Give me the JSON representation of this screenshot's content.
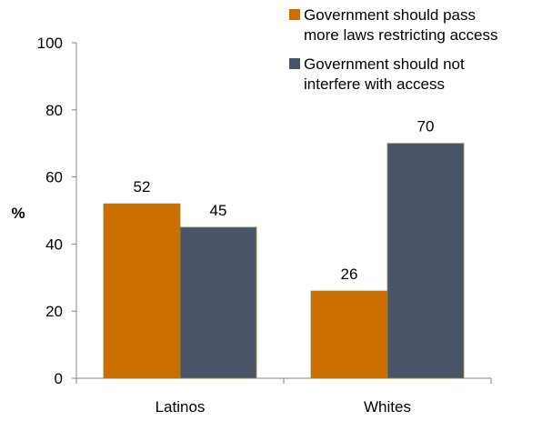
{
  "chart_data": {
    "type": "bar",
    "categories": [
      "Latinos",
      "Whites"
    ],
    "series": [
      {
        "name": "Government should pass more laws restricting access",
        "values": [
          52,
          26
        ],
        "color": "#CC6D00"
      },
      {
        "name": "Government should not interfere with access",
        "values": [
          45,
          70
        ],
        "color": "#4A5468"
      }
    ],
    "ylabel": "%",
    "ylim": [
      0,
      100
    ],
    "yticks": [
      "0",
      "20",
      "40",
      "60",
      "80",
      "100"
    ],
    "grid": false,
    "legend_placement": "top-right"
  },
  "legend": {
    "items": [
      {
        "line1": "Government should pass",
        "line2": "more laws restricting access"
      },
      {
        "line1": "Government should not",
        "line2": "interfere with access"
      }
    ]
  }
}
